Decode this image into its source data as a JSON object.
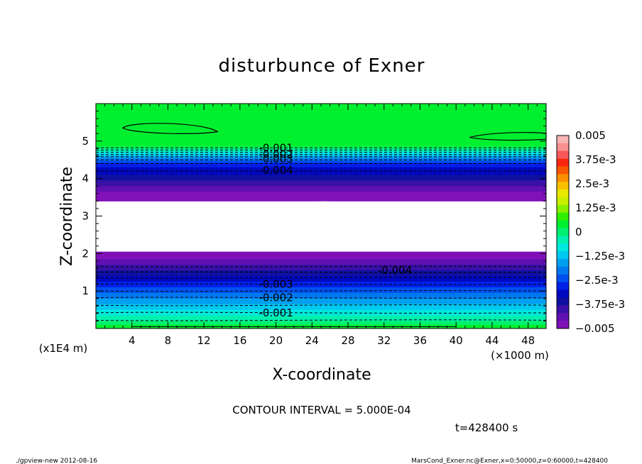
{
  "chart_data": {
    "type": "heatmap",
    "title": "disturbunce of Exner",
    "xlabel": "X-coordinate",
    "ylabel": "Z-coordinate",
    "x_unit_label": "(×1000 m)",
    "y_unit_label": "(x1E4 m)",
    "xlim": [
      0,
      50
    ],
    "ylim": [
      0,
      6
    ],
    "x_ticks": [
      "4",
      "8",
      "12",
      "16",
      "20",
      "24",
      "28",
      "32",
      "36",
      "40",
      "44",
      "48"
    ],
    "y_ticks": [
      "1",
      "2",
      "3",
      "4",
      "5"
    ],
    "colorbar": {
      "range": [
        -0.005,
        0.005
      ],
      "labels": [
        "0.005",
        "3.75e-3",
        "2.5e-3",
        "1.25e-3",
        "0",
        "−1.25e-3",
        "−2.5e-3",
        "−3.75e-3",
        "−0.005"
      ],
      "colors": [
        "#f8b4b4",
        "#f89090",
        "#f85858",
        "#f82810",
        "#f85800",
        "#f89000",
        "#f8c000",
        "#e8e800",
        "#c8f000",
        "#88f000",
        "#30f000",
        "#00f030",
        "#00f070",
        "#00f0b0",
        "#00e8e0",
        "#00c8f0",
        "#00a0f0",
        "#0078f0",
        "#0050f0",
        "#0020e8",
        "#0008c0",
        "#1010a0",
        "#3810a8",
        "#6010b0",
        "#8010b8"
      ]
    },
    "contour_labels": [
      "-0.001",
      "-0.002",
      "-0.003",
      "-0.004",
      "-0.001",
      "-0.002",
      "-0.003",
      "-0.004"
    ],
    "lower_contour_labels": [
      "-0.004",
      "-0.003",
      "-0.002",
      "-0.001"
    ],
    "upper_contour_labels": [
      "-0.001",
      "-0.002",
      "-0.003",
      "-0.004"
    ]
  },
  "footer": {
    "contour_interval": "CONTOUR INTERVAL = 5.000E-04",
    "time": "t=428400 s",
    "program": "./gpview-new   2012-08-16",
    "source": "MarsCond_Exner.nc@Exner,x=0:50000,z=0:60000,t=428400"
  }
}
